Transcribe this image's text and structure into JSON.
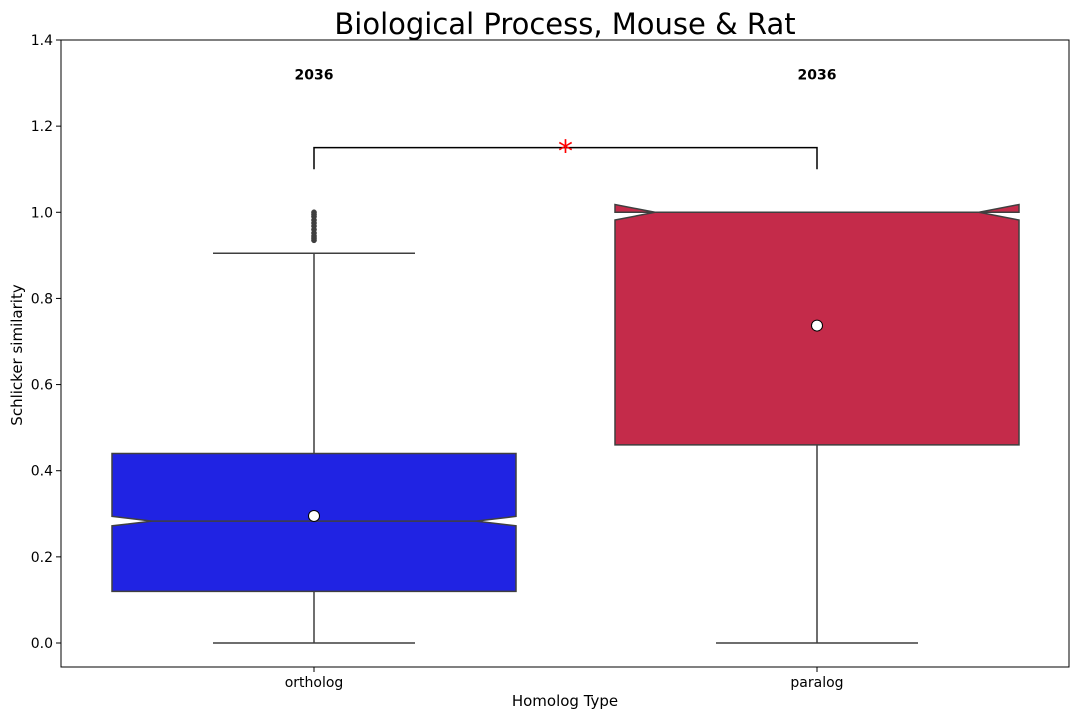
{
  "chart_data": {
    "type": "box",
    "title": "Biological Process, Mouse & Rat",
    "xlabel": "Homolog Type",
    "ylabel": "Schlicker similarity",
    "ylim": [
      -0.06,
      1.4
    ],
    "yticks": [
      "0.0",
      "0.2",
      "0.4",
      "0.6",
      "0.8",
      "1.0",
      "1.2",
      "1.4"
    ],
    "ytick_values": [
      0.0,
      0.2,
      0.4,
      0.6,
      0.8,
      1.0,
      1.2,
      1.4
    ],
    "grid": false,
    "notched": true,
    "categories": [
      "ortholog",
      "paralog"
    ],
    "series": [
      {
        "category": "ortholog",
        "color": "#2023e3",
        "count_label": "2036",
        "whisker_low": 0.0,
        "q1": 0.12,
        "median": 0.283,
        "q3": 0.44,
        "whisker_high": 0.905,
        "notch_low": 0.272,
        "notch_high": 0.294,
        "mean": 0.295,
        "outliers": [
          0.935,
          0.94,
          0.945,
          0.952,
          0.96,
          0.968,
          0.975,
          0.982,
          0.99,
          0.995,
          1.0
        ]
      },
      {
        "category": "paralog",
        "color": "#c42b4a",
        "count_label": "2036",
        "whisker_low": 0.0,
        "q1": 0.46,
        "median": 1.0,
        "q3": 1.0,
        "whisker_high": 1.0,
        "notch_low": 0.982,
        "notch_high": 1.018,
        "mean": 0.737,
        "outliers": []
      }
    ],
    "annotation": {
      "between": [
        "ortholog",
        "paralog"
      ],
      "bracket_y": 1.15,
      "leg_bottom": 1.1,
      "text": "*",
      "color": "#ff0000"
    },
    "count_label_y": 1.32
  }
}
